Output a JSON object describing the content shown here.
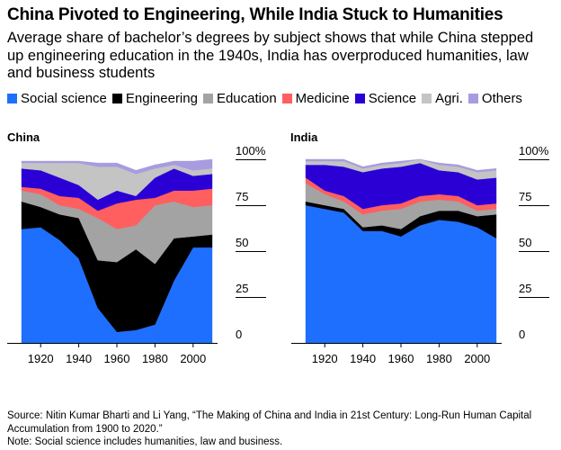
{
  "title": "China Pivoted to Engineering, While India Stuck to Humanities",
  "subtitle": "Average share of bachelor’s degrees by subject shows that while China stepped up engineering education in the 1940s, India has overproduced humanities, law and business students",
  "legend": [
    {
      "name": "Social science",
      "color": "#1f6fff"
    },
    {
      "name": "Engineering",
      "color": "#000000"
    },
    {
      "name": "Education",
      "color": "#a3a3a3"
    },
    {
      "name": "Medicine",
      "color": "#ff5f5f"
    },
    {
      "name": "Science",
      "color": "#2a00d5"
    },
    {
      "name": "Agri.",
      "color": "#c4c4c4"
    },
    {
      "name": "Others",
      "color": "#a89be0"
    }
  ],
  "source": "Source: Nitin Kumar Bharti and Li Yang, “The Making of China and India in 21st Century: Long-Run Human Capital Accumulation from 1900 to 2020.”",
  "note": "Note: Social science includes humanities, law and business.",
  "chart_data": [
    {
      "type": "area",
      "stacked": true,
      "title": "China",
      "x": [
        1910,
        1920,
        1930,
        1940,
        1950,
        1960,
        1970,
        1980,
        1990,
        2000,
        2010
      ],
      "xticks": [
        1920,
        1940,
        1960,
        1980,
        2000
      ],
      "xlim": [
        1910,
        2010
      ],
      "ylim": [
        0,
        100
      ],
      "yticks": [
        "0",
        "25",
        "50",
        "75",
        "100%"
      ],
      "series": [
        {
          "name": "Social science",
          "values": [
            62,
            63,
            56,
            46,
            19,
            6,
            7,
            10,
            34,
            52,
            52
          ]
        },
        {
          "name": "Engineering",
          "values": [
            15,
            11,
            14,
            22,
            26,
            38,
            44,
            33,
            23,
            6,
            7
          ]
        },
        {
          "name": "Education",
          "values": [
            6,
            7,
            5,
            5,
            23,
            18,
            13,
            32,
            20,
            16,
            16
          ]
        },
        {
          "name": "Medicine",
          "values": [
            2,
            3,
            5,
            6,
            4,
            14,
            14,
            4,
            6,
            9,
            9
          ]
        },
        {
          "name": "Science",
          "values": [
            10,
            10,
            10,
            7,
            6,
            7,
            2,
            11,
            12,
            8,
            8
          ]
        },
        {
          "name": "Agri.",
          "values": [
            3,
            4,
            8,
            12,
            18,
            13,
            12,
            5,
            2,
            3,
            3
          ]
        },
        {
          "name": "Others",
          "values": [
            1,
            1,
            1,
            1,
            2,
            2,
            2,
            2,
            2,
            5,
            5
          ]
        }
      ]
    },
    {
      "type": "area",
      "stacked": true,
      "title": "India",
      "x": [
        1910,
        1920,
        1930,
        1940,
        1950,
        1960,
        1970,
        1980,
        1990,
        2000,
        2010
      ],
      "xticks": [
        1920,
        1940,
        1960,
        1980,
        2000
      ],
      "xlim": [
        1910,
        2010
      ],
      "ylim": [
        0,
        100
      ],
      "yticks": [
        "0",
        "25",
        "50",
        "75",
        "100%"
      ],
      "series": [
        {
          "name": "Social science",
          "values": [
            75,
            73,
            71,
            61,
            61,
            58,
            64,
            67,
            66,
            63,
            57
          ]
        },
        {
          "name": "Engineering",
          "values": [
            2,
            2,
            2,
            2,
            3,
            4,
            5,
            5,
            6,
            6,
            13
          ]
        },
        {
          "name": "Education",
          "values": [
            10,
            6,
            4,
            7,
            8,
            11,
            8,
            6,
            5,
            3,
            3
          ]
        },
        {
          "name": "Medicine",
          "values": [
            3,
            2,
            3,
            3,
            3,
            3,
            3,
            3,
            3,
            3,
            3
          ]
        },
        {
          "name": "Science",
          "values": [
            7,
            14,
            16,
            20,
            20,
            20,
            18,
            13,
            13,
            14,
            14
          ]
        },
        {
          "name": "Agri.",
          "values": [
            2,
            2,
            3,
            2,
            2,
            2,
            3,
            3,
            3,
            4,
            4
          ]
        },
        {
          "name": "Others",
          "values": [
            1,
            1,
            1,
            1,
            1,
            1,
            1,
            1,
            1,
            1,
            1
          ]
        }
      ]
    }
  ]
}
